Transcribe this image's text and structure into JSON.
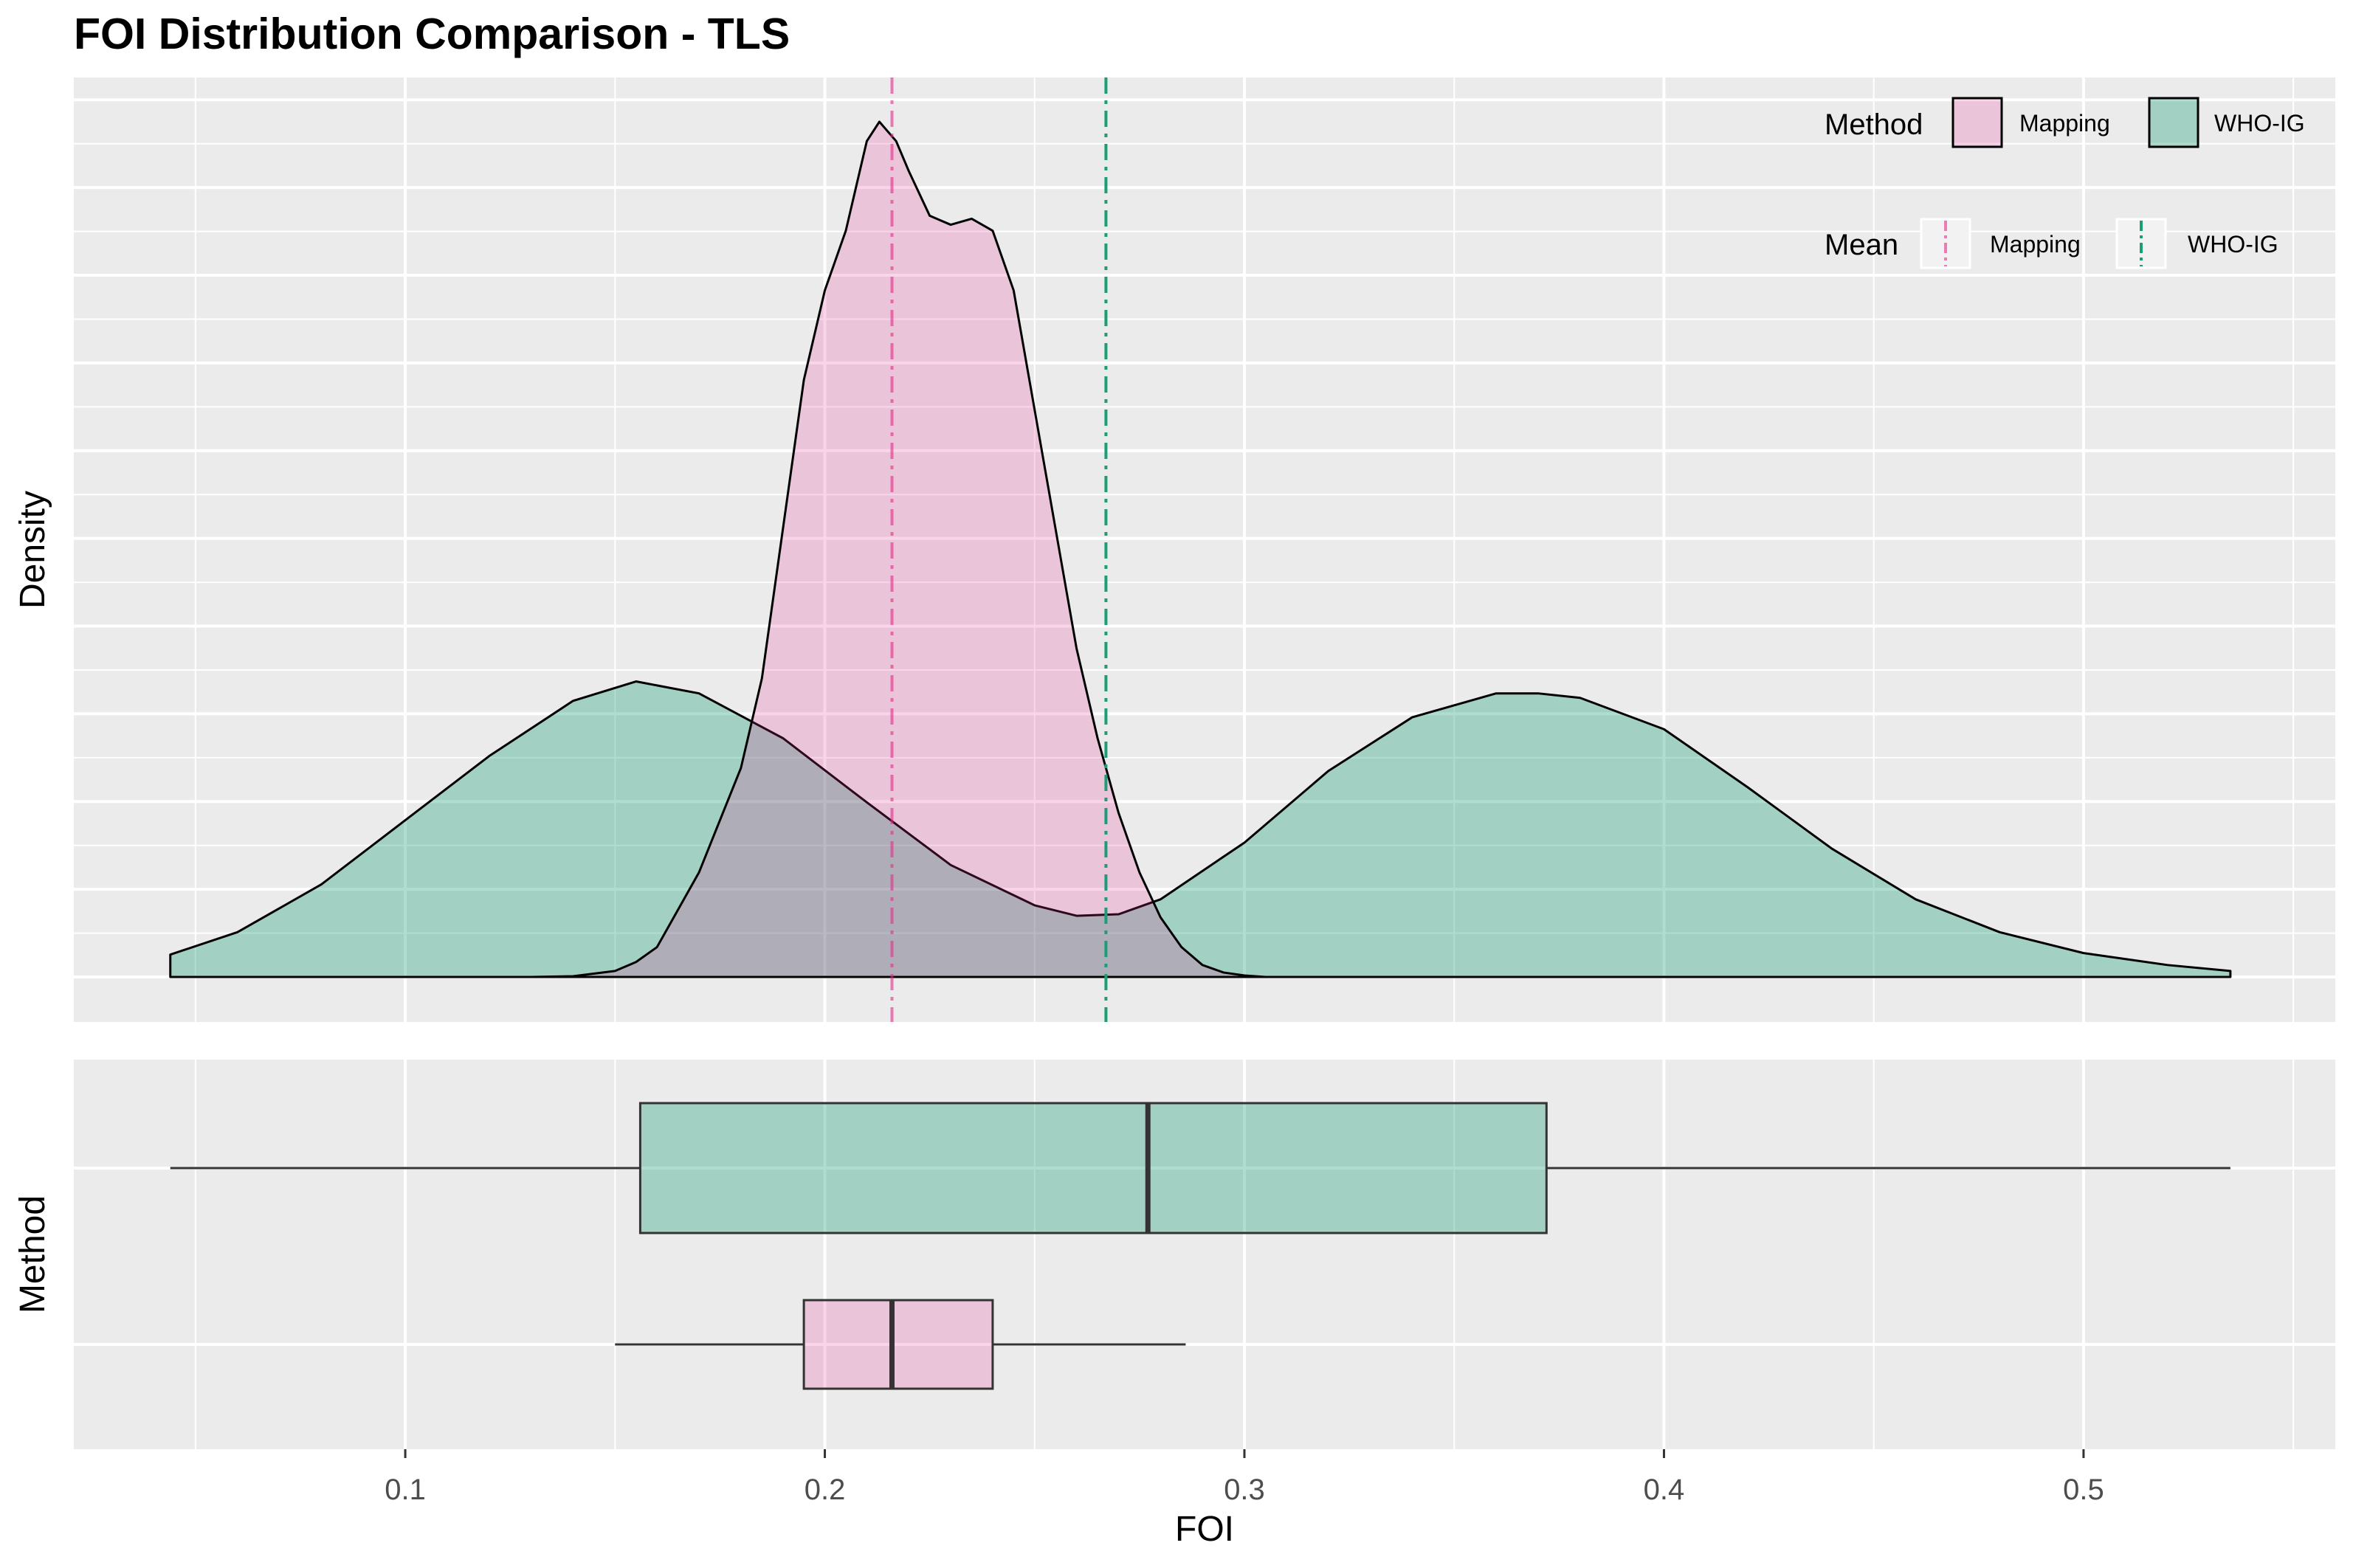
{
  "chart_data": [
    {
      "type": "area",
      "panel": "density",
      "title": "FOI Distribution Comparison - TLS",
      "ylabel": "Density",
      "xlim": [
        0.021,
        0.56
      ],
      "grid": true,
      "series": [
        {
          "name": "Mapping",
          "color": "#E7298A",
          "mean": 0.216,
          "points": [
            [
              0.13,
              0.0
            ],
            [
              0.14,
              0.0005
            ],
            [
              0.15,
              0.004
            ],
            [
              0.155,
              0.01
            ],
            [
              0.16,
              0.02
            ],
            [
              0.17,
              0.07
            ],
            [
              0.18,
              0.14
            ],
            [
              0.185,
              0.2
            ],
            [
              0.19,
              0.3
            ],
            [
              0.195,
              0.4
            ],
            [
              0.2,
              0.46
            ],
            [
              0.205,
              0.5
            ],
            [
              0.21,
              0.56
            ],
            [
              0.213,
              0.573
            ],
            [
              0.217,
              0.56
            ],
            [
              0.22,
              0.54
            ],
            [
              0.225,
              0.51
            ],
            [
              0.23,
              0.504
            ],
            [
              0.235,
              0.508
            ],
            [
              0.24,
              0.5
            ],
            [
              0.245,
              0.46
            ],
            [
              0.25,
              0.38
            ],
            [
              0.255,
              0.3
            ],
            [
              0.26,
              0.22
            ],
            [
              0.265,
              0.16
            ],
            [
              0.27,
              0.11
            ],
            [
              0.275,
              0.07
            ],
            [
              0.28,
              0.04
            ],
            [
              0.285,
              0.02
            ],
            [
              0.29,
              0.008
            ],
            [
              0.295,
              0.003
            ],
            [
              0.3,
              0.001
            ],
            [
              0.305,
              0.0
            ]
          ]
        },
        {
          "name": "WHO-IG",
          "color": "#1B9E77",
          "mean": 0.267,
          "points": [
            [
              0.044,
              0.015
            ],
            [
              0.06,
              0.03
            ],
            [
              0.08,
              0.062
            ],
            [
              0.1,
              0.105
            ],
            [
              0.12,
              0.148
            ],
            [
              0.14,
              0.185
            ],
            [
              0.155,
              0.198
            ],
            [
              0.17,
              0.19
            ],
            [
              0.19,
              0.16
            ],
            [
              0.21,
              0.117
            ],
            [
              0.23,
              0.075
            ],
            [
              0.25,
              0.048
            ],
            [
              0.26,
              0.041
            ],
            [
              0.27,
              0.042
            ],
            [
              0.28,
              0.052
            ],
            [
              0.3,
              0.09
            ],
            [
              0.32,
              0.138
            ],
            [
              0.34,
              0.174
            ],
            [
              0.36,
              0.19
            ],
            [
              0.37,
              0.19
            ],
            [
              0.38,
              0.187
            ],
            [
              0.4,
              0.166
            ],
            [
              0.42,
              0.127
            ],
            [
              0.44,
              0.086
            ],
            [
              0.46,
              0.052
            ],
            [
              0.48,
              0.03
            ],
            [
              0.5,
              0.016
            ],
            [
              0.52,
              0.008
            ],
            [
              0.535,
              0.004
            ]
          ]
        }
      ],
      "legend": {
        "placement": "top-right",
        "fill_title": "Method",
        "fill_items": [
          "Mapping",
          "WHO-IG"
        ],
        "line_title": "Mean",
        "line_items": [
          "Mapping",
          "WHO-IG"
        ]
      }
    },
    {
      "type": "box",
      "panel": "boxplot",
      "xlabel": "FOI",
      "ylabel": "Method",
      "xlim": [
        0.021,
        0.56
      ],
      "x_ticks": [
        "0.1",
        "0.2",
        "0.3",
        "0.4",
        "0.5"
      ],
      "x_tick_values": [
        0.1,
        0.2,
        0.3,
        0.4,
        0.5
      ],
      "grid": true,
      "boxes": [
        {
          "name": "WHO-IG",
          "color": "#1B9E77",
          "min": 0.044,
          "q1": 0.156,
          "median": 0.277,
          "q3": 0.372,
          "max": 0.535
        },
        {
          "name": "Mapping",
          "color": "#E7298A",
          "min": 0.15,
          "q1": 0.195,
          "median": 0.216,
          "q3": 0.24,
          "max": 0.286
        }
      ]
    }
  ]
}
